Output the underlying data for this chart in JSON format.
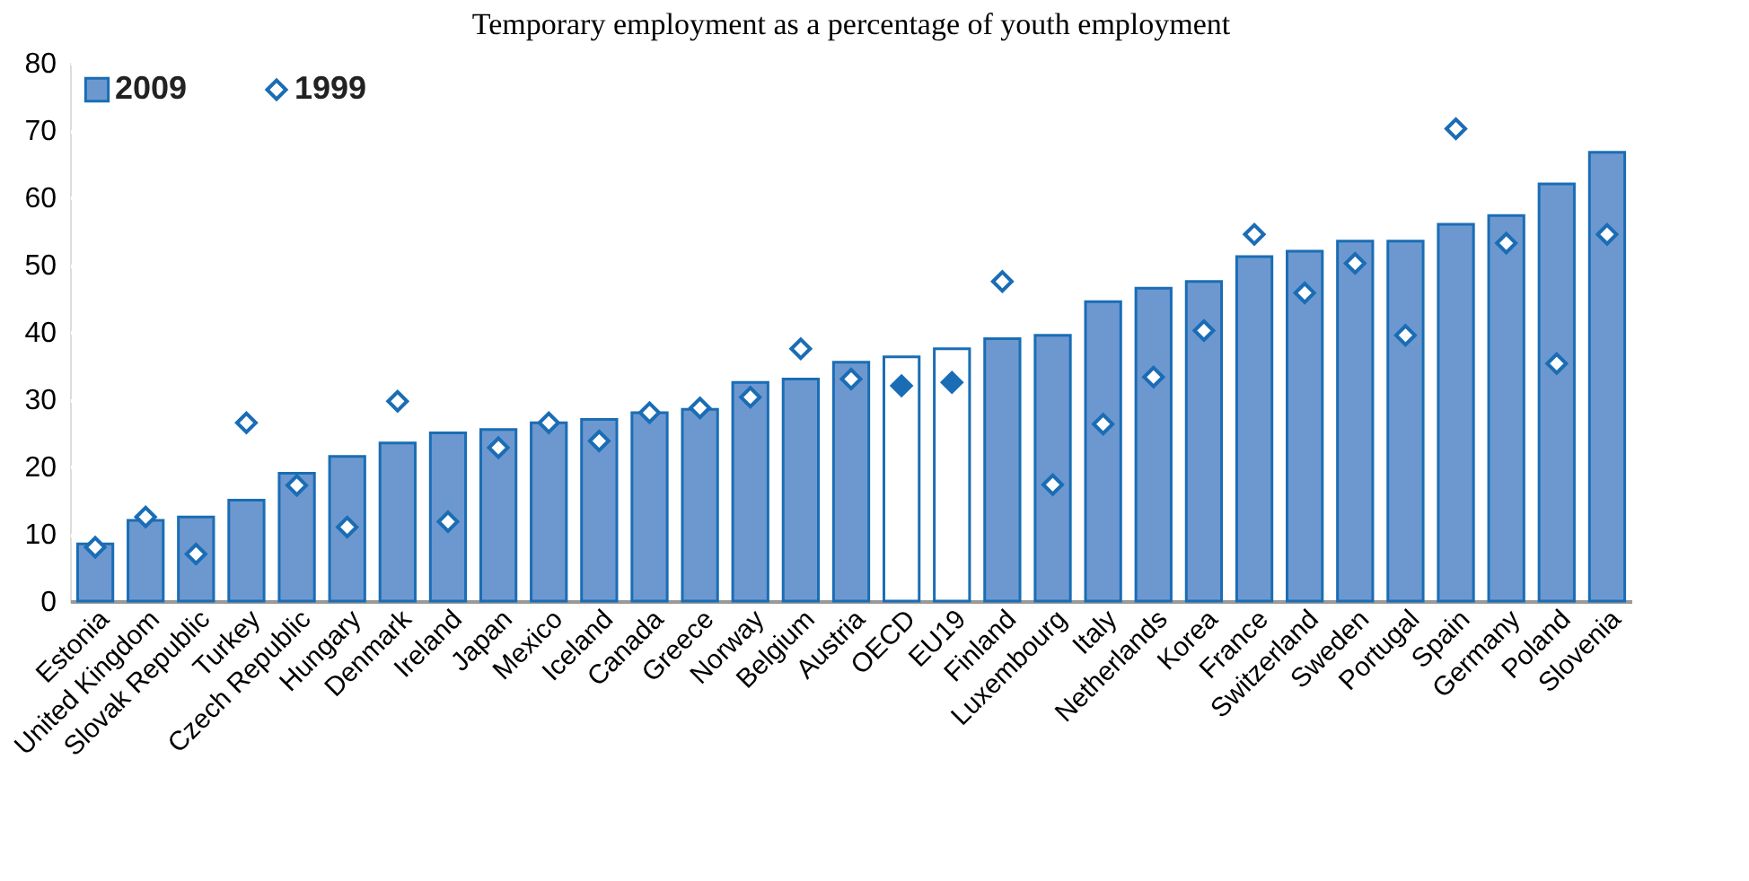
{
  "chart_data": {
    "type": "bar",
    "title": "Temporary employment as a percentage of youth employment",
    "categories": [
      "Estonia",
      "United Kingdom",
      "Slovak Republic",
      "Turkey",
      "Czech Republic",
      "Hungary",
      "Denmark",
      "Ireland",
      "Japan",
      "Mexico",
      "Iceland",
      "Canada",
      "Greece",
      "Norway",
      "Belgium",
      "Austria",
      "OECD",
      "EU19",
      "Finland",
      "Luxembourg",
      "Italy",
      "Netherlands",
      "Korea",
      "France",
      "Switzerland",
      "Sweden",
      "Portugal",
      "Spain",
      "Germany",
      "Poland",
      "Slovenia"
    ],
    "series": [
      {
        "name": "2009",
        "type": "bar",
        "color": "#6d98cf",
        "colors": [
          "#6d98cf",
          "#6d98cf",
          "#6d98cf",
          "#6d98cf",
          "#6d98cf",
          "#6d98cf",
          "#6d98cf",
          "#6d98cf",
          "#6d98cf",
          "#6d98cf",
          "#6d98cf",
          "#6d98cf",
          "#6d98cf",
          "#6d98cf",
          "#6d98cf",
          "#6d98cf",
          "#ffffff",
          "#ffffff",
          "#6d98cf",
          "#6d98cf",
          "#6d98cf",
          "#6d98cf",
          "#6d98cf",
          "#6d98cf",
          "#6d98cf",
          "#6d98cf",
          "#6d98cf",
          "#6d98cf",
          "#6d98cf",
          "#6d98cf",
          "#6d98cf"
        ],
        "values": [
          8.5,
          12,
          12.5,
          15,
          19,
          21.5,
          23.5,
          25,
          25.5,
          26.5,
          27,
          28,
          28.5,
          32.5,
          33,
          35.5,
          36.3,
          37.5,
          39,
          39.5,
          44.5,
          46.5,
          47.5,
          51.2,
          52,
          53.5,
          53.5,
          56,
          57.3,
          62,
          66.7
        ]
      },
      {
        "name": "1999",
        "type": "scatter",
        "marker": "diamond",
        "color": "#ffffff",
        "colors": [
          "#ffffff",
          "#ffffff",
          "#ffffff",
          "#ffffff",
          "#ffffff",
          "#ffffff",
          "#ffffff",
          "#ffffff",
          "#ffffff",
          "#ffffff",
          "#ffffff",
          "#ffffff",
          "#ffffff",
          "#ffffff",
          "#ffffff",
          "#ffffff",
          "#1a6db5",
          "#1a6db5",
          "#ffffff",
          "#ffffff",
          "#ffffff",
          "#ffffff",
          "#ffffff",
          "#ffffff",
          "#ffffff",
          "#ffffff",
          "#ffffff",
          "#ffffff",
          "#ffffff",
          "#ffffff",
          "#ffffff"
        ],
        "values": [
          8,
          12.5,
          7,
          26.5,
          17.2,
          11,
          29.7,
          11.8,
          22.8,
          26.5,
          23.8,
          28,
          28.7,
          30.3,
          37.5,
          33,
          32,
          32.5,
          47.5,
          17.3,
          26.3,
          33.3,
          40.2,
          54.5,
          45.8,
          50.2,
          39.5,
          70.2,
          53.2,
          35.3,
          54.5
        ]
      }
    ],
    "ylim": [
      0,
      80
    ],
    "yticks": [
      0,
      10,
      20,
      30,
      40,
      50,
      60,
      70,
      80
    ],
    "grid": "y",
    "legend": "top left"
  }
}
